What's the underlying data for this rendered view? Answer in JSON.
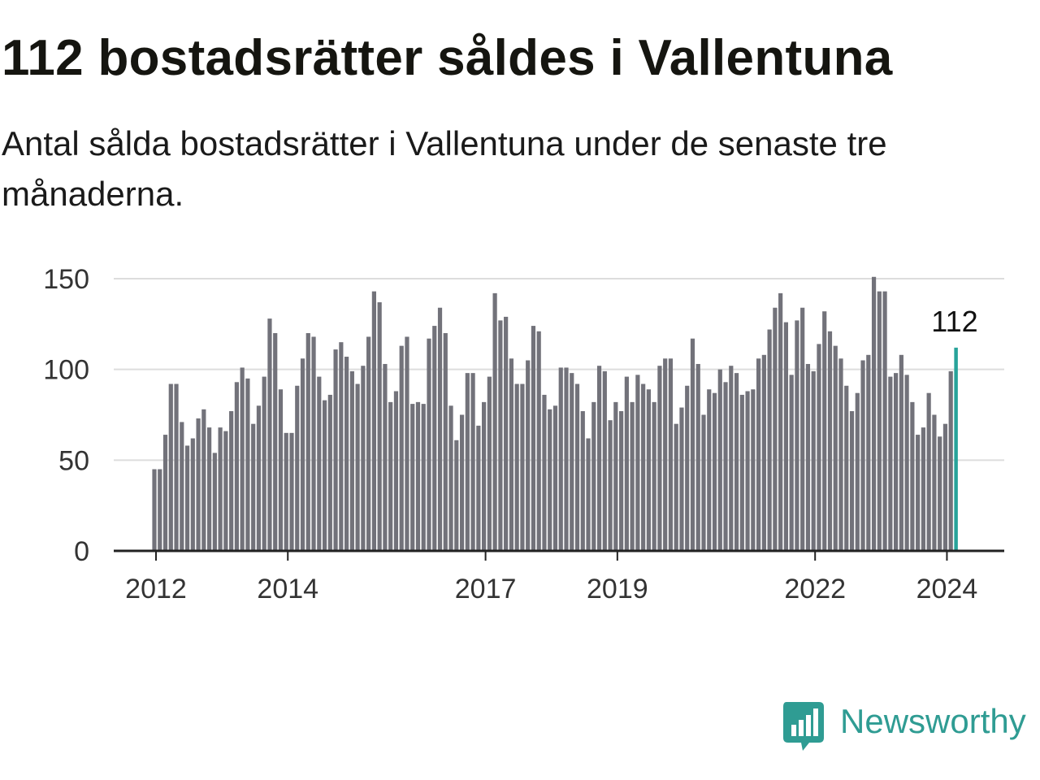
{
  "header": {
    "title": "112 bostadsrätter såldes i Vallentuna",
    "subtitle": "Antal sålda bostadsrätter i Vallentuna under de senaste tre månaderna."
  },
  "brand": {
    "name": "Newsworthy",
    "icon": "newsworthy-logo-icon",
    "color": "#2f9c93"
  },
  "chart_data": {
    "type": "bar",
    "x_start": "2012-01",
    "frequency": "monthly",
    "values": [
      45,
      45,
      64,
      92,
      92,
      71,
      58,
      62,
      73,
      78,
      68,
      54,
      68,
      66,
      77,
      93,
      101,
      95,
      70,
      80,
      96,
      128,
      120,
      89,
      65,
      65,
      91,
      106,
      120,
      118,
      96,
      83,
      86,
      111,
      115,
      107,
      99,
      92,
      102,
      118,
      143,
      137,
      103,
      82,
      88,
      113,
      118,
      81,
      82,
      81,
      117,
      124,
      134,
      120,
      80,
      61,
      75,
      98,
      98,
      69,
      82,
      96,
      142,
      127,
      129,
      106,
      92,
      92,
      105,
      124,
      121,
      86,
      78,
      80,
      101,
      101,
      98,
      92,
      77,
      62,
      82,
      102,
      99,
      72,
      82,
      77,
      96,
      82,
      97,
      92,
      89,
      82,
      102,
      106,
      106,
      70,
      79,
      91,
      117,
      103,
      75,
      89,
      87,
      100,
      93,
      102,
      98,
      86,
      88,
      89,
      106,
      108,
      122,
      134,
      142,
      126,
      97,
      127,
      134,
      103,
      99,
      114,
      132,
      121,
      113,
      106,
      91,
      77,
      87,
      105,
      108,
      151,
      143,
      143,
      96,
      98,
      108,
      97,
      82,
      64,
      68,
      87,
      75,
      63,
      70,
      99,
      112
    ],
    "highlight_last": true,
    "highlight_label": "112",
    "bar_color": "#72727a",
    "highlight_color": "#27a39a",
    "y_ticks": [
      0,
      50,
      100,
      150
    ],
    "ylim": [
      0,
      150
    ],
    "x_ticks": [
      "2012",
      "2014",
      "2017",
      "2019",
      "2022",
      "2024"
    ],
    "grid": true
  }
}
